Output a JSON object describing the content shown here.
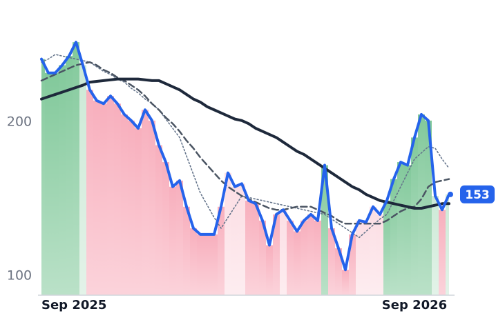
{
  "chart_data": {
    "type": "line",
    "categories": [
      "Sep 2025",
      null,
      null,
      null,
      null,
      null,
      null,
      null,
      null,
      null,
      null,
      null,
      null,
      null,
      null,
      null,
      null,
      null,
      null,
      null,
      null,
      null,
      null,
      null,
      null,
      null,
      null,
      null,
      null,
      null,
      null,
      null,
      null,
      null,
      null,
      null,
      null,
      null,
      null,
      null,
      null,
      null,
      null,
      null,
      null,
      null,
      null,
      null,
      null,
      null,
      null,
      null,
      null,
      null,
      "Sep 2026",
      null,
      null,
      null,
      null,
      null
    ],
    "series": [
      {
        "color": "#2563eb",
        "values": [
          241,
          232,
          232,
          237,
          243,
          252,
          237,
          221,
          214,
          212,
          217,
          212,
          205,
          201,
          196,
          208,
          201,
          185,
          174,
          158,
          162,
          145,
          131,
          127,
          127,
          127,
          145,
          167,
          158,
          160,
          149,
          147,
          136,
          120,
          140,
          143,
          136,
          129,
          136,
          140,
          136,
          172,
          131,
          118,
          104,
          127,
          136,
          135,
          145,
          140,
          149,
          163,
          174,
          172,
          190,
          205,
          201,
          152,
          143,
          153
        ]
      },
      {
        "color": "#1e293b",
        "values": [
          215,
          216.5,
          218,
          219.5,
          221,
          222.5,
          224,
          226,
          226.5,
          227,
          227.5,
          228,
          228,
          228,
          228,
          227.5,
          227,
          227,
          225,
          223,
          221,
          218,
          215,
          213,
          210,
          208,
          206,
          204,
          202,
          201,
          199,
          196,
          194,
          192,
          190,
          187,
          184,
          181,
          179,
          176,
          173,
          170,
          167,
          164,
          161,
          158,
          156,
          153,
          151,
          149,
          148,
          147,
          146,
          145,
          144,
          144,
          145,
          146,
          147,
          147
        ]
      },
      {
        "color": "#4b5563",
        "values": [
          227,
          229,
          231,
          233,
          235,
          237,
          238,
          239,
          237,
          234,
          232,
          229,
          227,
          224,
          221,
          217,
          212,
          208,
          203,
          199,
          194,
          188,
          183,
          177,
          172,
          167,
          162,
          158,
          155,
          152,
          150,
          148,
          146,
          144,
          143,
          143,
          144,
          145,
          145,
          145,
          143,
          141,
          139,
          136,
          134,
          134,
          134,
          134,
          134,
          134,
          136,
          139,
          142,
          144,
          145,
          150,
          158,
          161,
          162,
          163
        ]
      },
      {
        "color": "#64748b",
        "values": [
          239,
          241,
          244,
          243,
          242,
          241,
          240,
          239,
          236,
          233,
          231,
          228,
          226,
          222,
          219,
          215,
          212,
          208,
          202,
          196,
          190,
          178,
          166,
          154,
          146,
          138,
          131,
          138,
          145,
          152,
          151,
          150,
          149,
          148,
          147,
          146,
          145,
          144,
          143,
          142,
          141,
          140,
          137,
          134,
          131,
          128,
          125,
          129,
          133,
          137,
          140,
          149,
          158,
          167,
          176,
          180,
          184,
          183,
          176,
          170
        ]
      }
    ],
    "up_color": "#6cc08a",
    "down_color": "#f7a1b1",
    "ylim": [
      87.5,
      279.4
    ],
    "yticks": [
      100,
      200
    ]
  }
}
